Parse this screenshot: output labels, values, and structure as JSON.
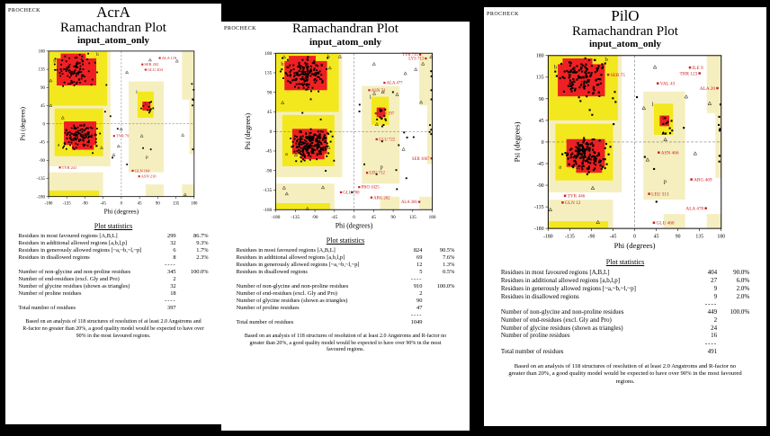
{
  "shared": {
    "stats_title": "Plot statistics",
    "footer": "Based on an analysis of 118 structures of resolution of at least 2.0 Angstroms and R-factor no greater than 20%, a good quality model would be expected to have over 90% in the most favoured regions.",
    "xlabel": "Phi (degrees)",
    "ylabel": "Psi (degrees)",
    "axis_min": -180,
    "axis_max": 180,
    "tick_step": 45,
    "colors": {
      "red": "#ef2023",
      "yellow": "#f3e81e",
      "pale": "#f5efbf",
      "point": "#000000",
      "outlier": "#cc2222",
      "background": "#ffffff"
    },
    "region_rects": {
      "pale": [
        [
          -180,
          -105,
          -27,
          180
        ],
        [
          -180,
          -180,
          -45,
          -120
        ],
        [
          18,
          -120,
          105,
          105
        ],
        [
          150,
          60,
          180,
          180
        ],
        [
          168,
          -75,
          180,
          60
        ],
        [
          60,
          -180,
          105,
          -150
        ],
        [
          150,
          -180,
          180,
          -150
        ]
      ],
      "yellow": [
        [
          -180,
          45,
          -35,
          180
        ],
        [
          -165,
          -80,
          -45,
          38
        ],
        [
          -180,
          -180,
          -55,
          -165
        ],
        [
          40,
          15,
          80,
          80
        ]
      ],
      "red": [
        [
          -160,
          95,
          -62,
          162
        ],
        [
          -150,
          158,
          -88,
          174
        ],
        [
          -142,
          -52,
          -62,
          6
        ],
        [
          -122,
          -64,
          -68,
          -48
        ],
        [
          52,
          33,
          72,
          55
        ]
      ]
    },
    "region_letters": [
      {
        "t": "b",
        "phi": -168,
        "psi": 152
      },
      {
        "t": "B",
        "phi": -112,
        "psi": 120
      },
      {
        "t": "a",
        "phi": -158,
        "psi": -55
      },
      {
        "t": "A",
        "phi": -100,
        "psi": -22
      },
      {
        "t": "L",
        "phi": 57,
        "psi": 47
      },
      {
        "t": "l",
        "phi": 36,
        "psi": 75
      },
      {
        "t": "p",
        "phi": 60,
        "psi": -85
      },
      {
        "t": "b",
        "phi": -62,
        "psi": 168
      }
    ]
  },
  "chart_data": [
    {
      "type": "scatter",
      "procheck": "PROCHECK",
      "heading": "AcrA",
      "title": "Ramachandran Plot",
      "subtitle": "input_atom_only",
      "seed": 11,
      "clusters": [
        {
          "name": "beta-sheet",
          "phi": [
            -172,
            -55
          ],
          "psi": [
            90,
            178
          ],
          "count": 95
        },
        {
          "name": "alpha-helix",
          "phi": [
            -148,
            -50
          ],
          "psi": [
            -68,
            10
          ],
          "count": 120
        },
        {
          "name": "left-handed-alpha",
          "phi": [
            45,
            82
          ],
          "psi": [
            8,
            62
          ],
          "count": 10
        },
        {
          "name": "right-edge",
          "phi": [
            172,
            180
          ],
          "psi": [
            -90,
            170
          ],
          "count": 6
        },
        {
          "name": "scatter",
          "phi": [
            -180,
            180
          ],
          "psi": [
            -180,
            180
          ],
          "count": 12
        }
      ],
      "glycine_triangles": 14,
      "outliers": [
        {
          "label": "ALA 118",
          "phi": 95,
          "psi": 163
        },
        {
          "label": "SER 202",
          "phi": 52,
          "psi": 147
        },
        {
          "label": "GLU 204",
          "phi": 60,
          "psi": 134
        },
        {
          "label": "TYR 79",
          "phi": -18,
          "psi": -30
        },
        {
          "label": "TYR 241",
          "phi": -152,
          "psi": -108
        },
        {
          "label": "GLN 104",
          "phi": 28,
          "psi": -116
        },
        {
          "label": "ASN 210",
          "phi": 44,
          "psi": -130
        }
      ],
      "stats_rows": [
        {
          "label": "Residues in most favoured regions  [A,B,L]",
          "value": "299",
          "pct": "86.7%"
        },
        {
          "label": "Residues in additional allowed regions  [a,b,l,p]",
          "value": "32",
          "pct": "9.3%"
        },
        {
          "label": "Residues in generously allowed regions  [~a,~b,~l,~p]",
          "value": "6",
          "pct": "1.7%"
        },
        {
          "label": "Residues in disallowed regions",
          "value": "8",
          "pct": "2.3%"
        },
        {
          "sep": true,
          "value": "----"
        },
        {
          "label": "Number of non-glycine and non-proline residues",
          "value": "345",
          "pct": "100.0%"
        },
        {
          "label": "Number of end-residues (excl. Gly and Pro)",
          "value": "2",
          "pct": ""
        },
        {
          "label": "Number of glycine residues (shown as triangles)",
          "value": "32",
          "pct": ""
        },
        {
          "label": "Number of proline residues",
          "value": "18",
          "pct": ""
        },
        {
          "sep": true,
          "value": "----"
        },
        {
          "label": "Total number of residues",
          "value": "397",
          "pct": ""
        }
      ]
    },
    {
      "type": "scatter",
      "procheck": "PROCHECK",
      "heading": "",
      "title": "Ramachandran Plot",
      "subtitle": "input_atom_only",
      "seed": 22,
      "clusters": [
        {
          "name": "beta-sheet",
          "phi": [
            -172,
            -55
          ],
          "psi": [
            90,
            178
          ],
          "count": 150
        },
        {
          "name": "alpha-helix",
          "phi": [
            -148,
            -50
          ],
          "psi": [
            -70,
            10
          ],
          "count": 215
        },
        {
          "name": "left-handed-alpha",
          "phi": [
            45,
            82
          ],
          "psi": [
            8,
            62
          ],
          "count": 14
        },
        {
          "name": "right-edge",
          "phi": [
            172,
            180
          ],
          "psi": [
            -90,
            170
          ],
          "count": 8
        },
        {
          "name": "scatter",
          "phi": [
            -180,
            180
          ],
          "psi": [
            -180,
            180
          ],
          "count": 22
        }
      ],
      "glycine_triangles": 22,
      "outliers": [
        {
          "label": "TYR 715",
          "phi": 152,
          "psi": 177
        },
        {
          "label": "LYS 713",
          "phi": 165,
          "psi": 168
        },
        {
          "label": "ALA 477",
          "phi": 70,
          "psi": 112
        },
        {
          "label": "ASN 74",
          "phi": 35,
          "psi": 95
        },
        {
          "label": "GLN 197",
          "phi": 50,
          "psi": 42
        },
        {
          "label": "GLU 722",
          "phi": 52,
          "psi": -18
        },
        {
          "label": "SER 1067",
          "phi": 178,
          "psi": -62
        },
        {
          "label": "LEU 712",
          "phi": 30,
          "psi": -95
        },
        {
          "label": "PRO 1025",
          "phi": 12,
          "psi": -128
        },
        {
          "label": "GLU 780",
          "phi": -30,
          "psi": -140
        },
        {
          "label": "ARG 262",
          "phi": 40,
          "psi": -152
        },
        {
          "label": "ALA 366",
          "phi": 150,
          "psi": -162
        }
      ],
      "stats_rows": [
        {
          "label": "Residues in most favoured regions  [A,B,L]",
          "value": "824",
          "pct": "90.5%"
        },
        {
          "label": "Residues in additional allowed regions  [a,b,l,p]",
          "value": "69",
          "pct": "7.6%"
        },
        {
          "label": "Residues in generously allowed regions  [~a,~b,~l,~p]",
          "value": "12",
          "pct": "1.3%"
        },
        {
          "label": "Residues in disallowed regions",
          "value": "5",
          "pct": "0.5%"
        },
        {
          "sep": true,
          "value": "----"
        },
        {
          "label": "Number of non-glycine and non-proline residues",
          "value": "910",
          "pct": "100.0%"
        },
        {
          "label": "Number of end-residues (excl. Gly and Pro)",
          "value": "2",
          "pct": ""
        },
        {
          "label": "Number of glycine residues (shown as triangles)",
          "value": "90",
          "pct": ""
        },
        {
          "label": "Number of proline residues",
          "value": "47",
          "pct": ""
        },
        {
          "sep": true,
          "value": "----"
        },
        {
          "label": "Total number of residues",
          "value": "1049",
          "pct": ""
        }
      ]
    },
    {
      "type": "scatter",
      "procheck": "PROCHECK",
      "heading": "PilO",
      "title": "Ramachandran Plot",
      "subtitle": "input_atom_only",
      "seed": 33,
      "clusters": [
        {
          "name": "beta-sheet",
          "phi": [
            -172,
            -55
          ],
          "psi": [
            90,
            178
          ],
          "count": 118
        },
        {
          "name": "alpha-helix",
          "phi": [
            -148,
            -50
          ],
          "psi": [
            -68,
            10
          ],
          "count": 150
        },
        {
          "name": "left-handed-alpha",
          "phi": [
            45,
            82
          ],
          "psi": [
            8,
            62
          ],
          "count": 9
        },
        {
          "name": "right-edge",
          "phi": [
            172,
            180
          ],
          "psi": [
            -90,
            170
          ],
          "count": 7
        },
        {
          "name": "scatter",
          "phi": [
            -180,
            180
          ],
          "psi": [
            -180,
            180
          ],
          "count": 14
        }
      ],
      "glycine_triangles": 12,
      "outliers": [
        {
          "label": "SER 75",
          "phi": -55,
          "psi": 140
        },
        {
          "label": "ILE 9",
          "phi": 115,
          "psi": 155
        },
        {
          "label": "THR 123",
          "phi": 135,
          "psi": 143
        },
        {
          "label": "VAL 43",
          "phi": 48,
          "psi": 122
        },
        {
          "label": "ALA 20",
          "phi": 172,
          "psi": 112
        },
        {
          "label": "ASN 466",
          "phi": 50,
          "psi": -22
        },
        {
          "label": "ARG 469",
          "phi": 118,
          "psi": -78
        },
        {
          "label": "LEU 313",
          "phi": 30,
          "psi": -108
        },
        {
          "label": "TYR 446",
          "phi": -145,
          "psi": -112
        },
        {
          "label": "GLN 12",
          "phi": -150,
          "psi": -126
        },
        {
          "label": "ALA 478",
          "phi": 148,
          "psi": -138
        },
        {
          "label": "GLU 460",
          "phi": 40,
          "psi": -168
        }
      ],
      "stats_rows": [
        {
          "label": "Residues in most favoured regions  [A,B,L]",
          "value": "404",
          "pct": "90.0%"
        },
        {
          "label": "Residues in additional allowed regions  [a,b,l,p]",
          "value": "27",
          "pct": "6.0%"
        },
        {
          "label": "Residues in generously allowed regions  [~a,~b,~l,~p]",
          "value": "9",
          "pct": "2.0%"
        },
        {
          "label": "Residues in disallowed regions",
          "value": "9",
          "pct": "2.0%"
        },
        {
          "sep": true,
          "value": "----"
        },
        {
          "label": "Number of non-glycine and non-proline residues",
          "value": "449",
          "pct": "100.0%"
        },
        {
          "label": "Number of end-residues (excl. Gly and Pro)",
          "value": "2",
          "pct": ""
        },
        {
          "label": "Number of glycine residues (shown as triangles)",
          "value": "24",
          "pct": ""
        },
        {
          "label": "Number of proline residues",
          "value": "16",
          "pct": ""
        },
        {
          "sep": true,
          "value": "----"
        },
        {
          "label": "Total number of residues",
          "value": "491",
          "pct": ""
        }
      ]
    }
  ]
}
